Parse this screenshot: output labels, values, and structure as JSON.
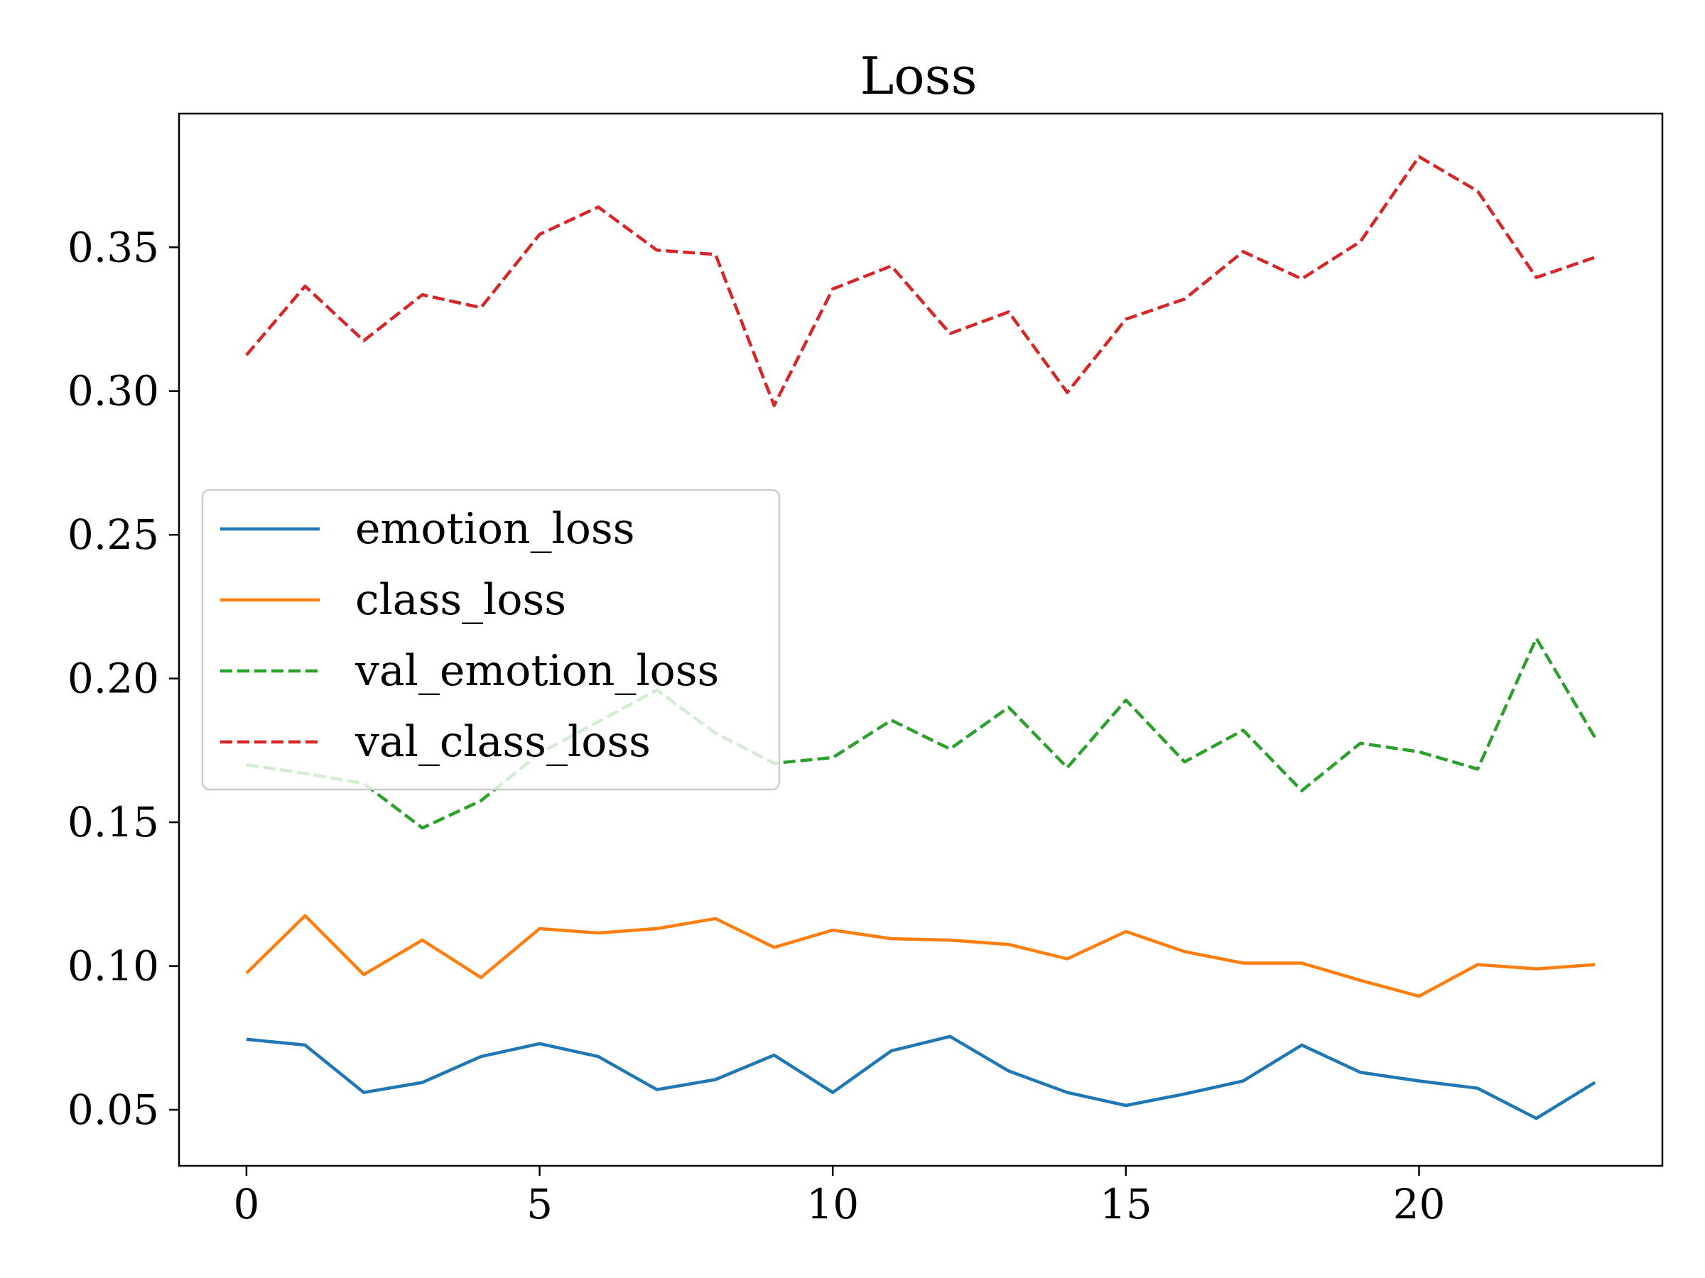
{
  "chart_data": {
    "type": "line",
    "title": "Loss",
    "xlabel": "",
    "ylabel": "",
    "xlim": [
      -1.15,
      24.15
    ],
    "ylim": [
      0.0305,
      0.3965
    ],
    "xticks": [
      0,
      5,
      10,
      15,
      20
    ],
    "xtick_labels": [
      "0",
      "5",
      "10",
      "15",
      "20"
    ],
    "yticks": [
      0.05,
      0.1,
      0.15,
      0.2,
      0.25,
      0.3,
      0.35
    ],
    "ytick_labels": [
      "0.05",
      "0.10",
      "0.15",
      "0.20",
      "0.25",
      "0.30",
      "0.35"
    ],
    "grid": false,
    "legend_position": "center-left",
    "x": [
      0,
      1,
      2,
      3,
      4,
      5,
      6,
      7,
      8,
      9,
      10,
      11,
      12,
      13,
      14,
      15,
      16,
      17,
      18,
      19,
      20,
      21,
      22,
      23
    ],
    "series": [
      {
        "name": "emotion_loss",
        "color": "#1f77b4",
        "dash": false,
        "values": [
          0.0745,
          0.0725,
          0.056,
          0.0595,
          0.0685,
          0.073,
          0.0685,
          0.057,
          0.0605,
          0.069,
          0.056,
          0.0705,
          0.0755,
          0.0635,
          0.056,
          0.0515,
          0.0555,
          0.06,
          0.0725,
          0.063,
          0.06,
          0.0575,
          0.047,
          0.0595
        ]
      },
      {
        "name": "class_loss",
        "color": "#ff7f0e",
        "dash": false,
        "values": [
          0.0975,
          0.1175,
          0.097,
          0.109,
          0.096,
          0.113,
          0.1115,
          0.113,
          0.1165,
          0.1065,
          0.1125,
          0.1095,
          0.109,
          0.1075,
          0.1025,
          0.112,
          0.105,
          0.101,
          0.101,
          0.095,
          0.0895,
          0.1005,
          0.099,
          0.1005
        ]
      },
      {
        "name": "val_emotion_loss",
        "color": "#2ca02c",
        "dash": true,
        "values": [
          0.17,
          0.167,
          0.1635,
          0.148,
          0.1575,
          0.174,
          0.185,
          0.196,
          0.181,
          0.1705,
          0.1725,
          0.1855,
          0.1755,
          0.19,
          0.169,
          0.1925,
          0.171,
          0.182,
          0.161,
          0.1775,
          0.1745,
          0.1685,
          0.214,
          0.1795
        ]
      },
      {
        "name": "val_class_loss",
        "color": "#d62728",
        "dash": true,
        "values": [
          0.3125,
          0.3365,
          0.3175,
          0.3335,
          0.329,
          0.3545,
          0.364,
          0.349,
          0.3475,
          0.295,
          0.3355,
          0.3435,
          0.32,
          0.3275,
          0.2995,
          0.325,
          0.332,
          0.3485,
          0.339,
          0.352,
          0.3815,
          0.3695,
          0.3395,
          0.3465
        ]
      }
    ]
  }
}
